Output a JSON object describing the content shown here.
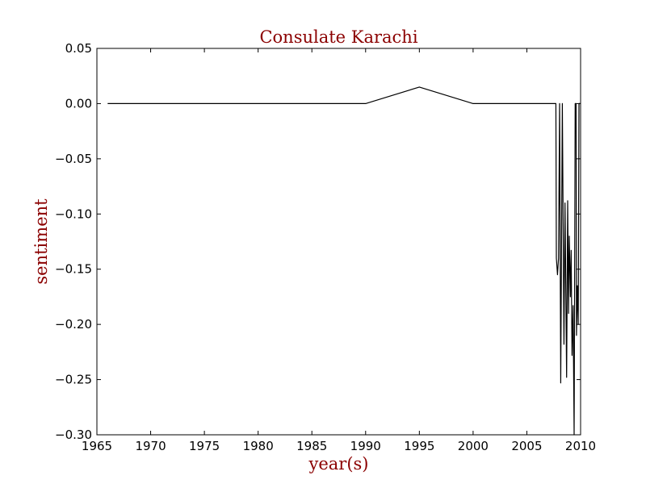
{
  "chart_data": {
    "type": "line",
    "title": "Consulate Karachi",
    "xlabel": "year(s)",
    "ylabel": "sentiment",
    "xlim": [
      1965,
      2010
    ],
    "ylim": [
      -0.3,
      0.05
    ],
    "grid": false,
    "x_ticks": [
      "1965",
      "1970",
      "1975",
      "1980",
      "1985",
      "1990",
      "1995",
      "2000",
      "2005",
      "2010"
    ],
    "y_ticks": [
      "0.05",
      "0.00",
      "−0.05",
      "−0.10",
      "−0.15",
      "−0.20",
      "−0.25",
      "−0.30"
    ],
    "x_tick_values": [
      1965,
      1970,
      1975,
      1980,
      1985,
      1990,
      1995,
      2000,
      2005,
      2010
    ],
    "y_tick_values": [
      0.05,
      0.0,
      -0.05,
      -0.1,
      -0.15,
      -0.2,
      -0.25,
      -0.3
    ],
    "line_color": "#000000",
    "title_color": "#8b0000",
    "series": [
      {
        "x": [
          1966,
          1990,
          1995,
          2000,
          2007.6,
          2007.7,
          2007.75,
          2007.85,
          2007.95,
          2008.05,
          2008.15,
          2008.3,
          2008.45,
          2008.55,
          2008.7,
          2008.8,
          2008.88,
          2008.95,
          2009.05,
          2009.12,
          2009.2,
          2009.3,
          2009.4,
          2009.5,
          2009.58,
          2009.62,
          2009.7,
          2009.78,
          2009.85,
          2009.95
        ],
        "y": [
          0.0,
          0.0,
          0.015,
          0.0,
          0.0,
          0.0,
          -0.14,
          -0.155,
          -0.14,
          0.0,
          -0.253,
          0.0,
          -0.218,
          -0.09,
          -0.248,
          -0.088,
          -0.19,
          -0.12,
          -0.175,
          -0.133,
          -0.228,
          -0.183,
          -0.3,
          0.0,
          0.0,
          -0.21,
          -0.165,
          -0.2,
          0.0,
          0.0
        ]
      }
    ]
  }
}
